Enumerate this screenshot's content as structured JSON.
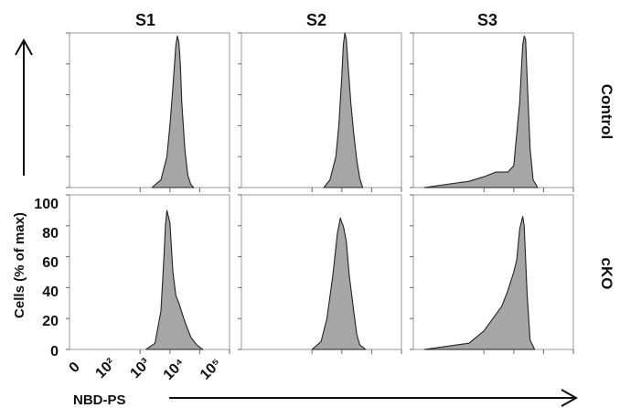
{
  "chart_data": {
    "type": "area",
    "column_titles": [
      "S1",
      "S2",
      "S3"
    ],
    "row_labels": [
      "Control",
      "cKO"
    ],
    "xlabel": "NBD-PS",
    "ylabel": "Cells (% of max)",
    "x_scale": "biexponential",
    "x_tick_labels": [
      "0",
      "10²",
      "10³",
      "10⁴",
      "10⁵"
    ],
    "x_tick_values": [
      0,
      100,
      1000,
      10000,
      100000
    ],
    "y_tick_labels": [
      "0",
      "20",
      "40",
      "60",
      "80",
      "100"
    ],
    "ylim": [
      0,
      100
    ],
    "grid": false,
    "panels": [
      {
        "row": "Control",
        "column": "S1",
        "x_log10": [
          2.4,
          2.7,
          2.9,
          3.0,
          3.1,
          3.2,
          3.25,
          3.3,
          3.35,
          3.4,
          3.5,
          3.6,
          3.7,
          3.8
        ],
        "y": [
          0,
          5,
          20,
          40,
          65,
          92,
          98,
          94,
          80,
          55,
          25,
          8,
          2,
          0
        ]
      },
      {
        "row": "Control",
        "column": "S2",
        "x_log10": [
          2.4,
          2.6,
          2.8,
          2.9,
          3.0,
          3.05,
          3.1,
          3.15,
          3.2,
          3.3,
          3.4,
          3.5,
          3.6,
          3.7
        ],
        "y": [
          0,
          5,
          20,
          40,
          72,
          92,
          100,
          96,
          82,
          55,
          35,
          18,
          6,
          0
        ]
      },
      {
        "row": "Control",
        "column": "S3",
        "x_log10": [
          0.0,
          1.5,
          2.0,
          2.4,
          2.8,
          3.0,
          3.2,
          3.3,
          3.35,
          3.4,
          3.45,
          3.55,
          3.65,
          3.8
        ],
        "y": [
          0,
          4,
          7,
          10,
          10,
          14,
          55,
          92,
          98,
          96,
          70,
          25,
          5,
          0
        ]
      },
      {
        "row": "cKO",
        "column": "S1",
        "x_log10": [
          2.2,
          2.5,
          2.7,
          2.8,
          2.85,
          2.9,
          3.0,
          3.1,
          3.2,
          3.3,
          3.5,
          3.7,
          3.9,
          4.1
        ],
        "y": [
          0,
          4,
          25,
          60,
          80,
          90,
          82,
          50,
          35,
          30,
          18,
          8,
          3,
          0
        ]
      },
      {
        "row": "cKO",
        "column": "S2",
        "x_log10": [
          2.0,
          2.3,
          2.5,
          2.7,
          2.85,
          2.95,
          3.0,
          3.05,
          3.15,
          3.25,
          3.4,
          3.5,
          3.6,
          3.8
        ],
        "y": [
          0,
          5,
          20,
          48,
          75,
          85,
          82,
          80,
          70,
          48,
          25,
          10,
          3,
          0
        ]
      },
      {
        "row": "cKO",
        "column": "S3",
        "x_log10": [
          0.0,
          1.5,
          2.0,
          2.3,
          2.6,
          2.8,
          3.0,
          3.1,
          3.2,
          3.3,
          3.35,
          3.45,
          3.55,
          3.7
        ],
        "y": [
          0,
          4,
          12,
          20,
          28,
          38,
          50,
          58,
          78,
          86,
          80,
          35,
          6,
          0
        ]
      }
    ]
  }
}
